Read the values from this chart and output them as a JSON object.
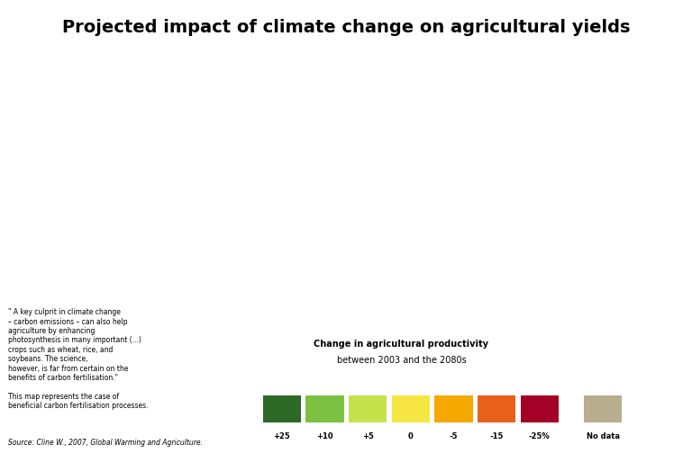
{
  "title": "Projected impact of climate change on agricultural yields",
  "legend_title": "Change in agricultural productivity",
  "legend_subtitle": "between 2003 and the 2080s",
  "source": "Source: Cline W., 2007, Global Warming and Agriculture.",
  "footnote": "\" A key culprit in climate change\n– carbon emissions – can also help\nagriculture by enhancing\nphotosynthesis in many important (...)\ncrops such as wheat, rice, and\nsoybeans. The science,\nhowever, is far from certain on the\nbenefits of carbon fertilisation.\"\n\nThis map represents the case of\nbeneficial carbon fertilisation processes.",
  "colors": {
    "plus25": "#2d6a27",
    "plus10": "#7dc142",
    "plus5": "#c5e24a",
    "zero": "#f5e642",
    "minus5": "#f5a800",
    "minus15": "#e8601c",
    "minus25": "#a50026",
    "nodata": "#b8ad8e"
  },
  "legend_labels": [
    "+25",
    "+10",
    "+5",
    "0",
    "-5",
    "-15",
    "-25%",
    "No data"
  ],
  "background_color": "#d6eef5",
  "title_bg": "#ffffff",
  "map_bg": "#d6eef5"
}
